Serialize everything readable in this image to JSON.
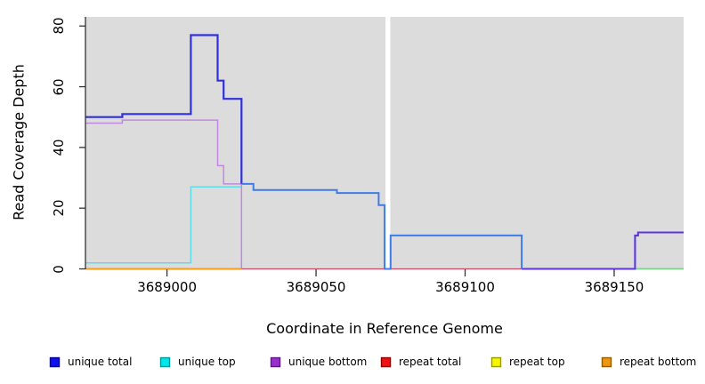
{
  "chart_data": {
    "type": "line",
    "subtype": "step-coverage-plot",
    "title": "",
    "xlabel": "Coordinate in Reference Genome",
    "ylabel": "Read Coverage Depth",
    "xlim": [
      3688972.8,
      3689173.3
    ],
    "ylim": [
      0,
      83
    ],
    "grid": false,
    "panel_color": "#dcdcdc",
    "gap_color": "#ffffff",
    "axis_color": "#333333",
    "legend_position": "bottom",
    "x_ticks": [
      {
        "value": 3689000,
        "label": "3689000"
      },
      {
        "value": 3689050,
        "label": "3689050"
      },
      {
        "value": 3689100,
        "label": "3689100"
      },
      {
        "value": 3689150,
        "label": "3689150"
      }
    ],
    "y_ticks": [
      {
        "value": 0,
        "label": "0"
      },
      {
        "value": 20,
        "label": "20"
      },
      {
        "value": 40,
        "label": "40"
      },
      {
        "value": 60,
        "label": "60"
      },
      {
        "value": 80,
        "label": "80"
      }
    ],
    "gap": {
      "x_start": 3689073.3,
      "x_end": 3689074.9
    },
    "legend": [
      {
        "label": "unique total",
        "color": "#1010ee",
        "border": "#000090"
      },
      {
        "label": "unique top",
        "color": "#00e8e8",
        "border": "#009898"
      },
      {
        "label": "unique bottom",
        "color": "#9a2fd0",
        "border": "#5c1880"
      },
      {
        "label": "repeat total",
        "color": "#ee1111",
        "border": "#900000"
      },
      {
        "label": "repeat top",
        "color": "#f6f600",
        "border": "#9a9a00"
      },
      {
        "label": "repeat bottom",
        "color": "#f09510",
        "border": "#925c00"
      }
    ],
    "series": [
      {
        "name": "repeat-total-baseline",
        "color": "#d34a66",
        "width": 1.3,
        "points": [
          [
            3688972.8,
            0
          ],
          [
            3689173.3,
            0
          ]
        ]
      },
      {
        "name": "repeat-bottom-baseline",
        "color": "#ff9c15",
        "width": 1.9,
        "points": [
          [
            3688972.8,
            0
          ],
          [
            3689025,
            0
          ]
        ]
      },
      {
        "name": "top-strand-overlap-baseline",
        "color": "#7ed18c",
        "width": 1.5,
        "points": [
          [
            3689157,
            0
          ],
          [
            3689173.3,
            0
          ]
        ]
      },
      {
        "name": "unique-top",
        "color": "#5cdde8",
        "width": 1.5,
        "points": [
          [
            3688972.8,
            2
          ],
          [
            3689008,
            2
          ],
          [
            3689008,
            27
          ],
          [
            3689025,
            27
          ]
        ]
      },
      {
        "name": "unique-bottom",
        "color": "#c287e2",
        "width": 1.5,
        "points": [
          [
            3688972.8,
            48
          ],
          [
            3688985,
            48
          ],
          [
            3688985,
            49
          ],
          [
            3689017,
            49
          ],
          [
            3689017,
            34
          ],
          [
            3689019,
            34
          ],
          [
            3689019,
            28
          ],
          [
            3689025,
            28
          ],
          [
            3689025,
            0
          ]
        ]
      },
      {
        "name": "unique-total-right-overlap",
        "color": "#5d36e0",
        "width": 2.1,
        "points": [
          [
            3689119,
            0
          ],
          [
            3689157,
            0
          ],
          [
            3689157,
            11
          ],
          [
            3689158,
            11
          ],
          [
            3689158,
            12
          ],
          [
            3689173.3,
            12
          ]
        ]
      },
      {
        "name": "unique-total",
        "color": "#3030dd",
        "width": 2.2,
        "points": [
          [
            3688972.8,
            50
          ],
          [
            3688985,
            50
          ],
          [
            3688985,
            51
          ],
          [
            3689008,
            51
          ],
          [
            3689008,
            77
          ],
          [
            3689017,
            77
          ],
          [
            3689017,
            62
          ],
          [
            3689019,
            62
          ],
          [
            3689019,
            56
          ],
          [
            3689025,
            56
          ],
          [
            3689025,
            28
          ]
        ]
      },
      {
        "name": "unique-total-over-top",
        "color": "#3f7ce8",
        "width": 2.0,
        "points": [
          [
            3689025,
            28
          ],
          [
            3689029,
            28
          ],
          [
            3689029,
            26
          ],
          [
            3689057,
            26
          ],
          [
            3689057,
            25
          ],
          [
            3689071,
            25
          ],
          [
            3689071,
            21
          ],
          [
            3689073,
            21
          ],
          [
            3689073,
            0
          ],
          [
            3689075,
            0
          ],
          [
            3689075,
            11
          ],
          [
            3689119,
            11
          ],
          [
            3689119,
            0
          ]
        ]
      }
    ]
  }
}
